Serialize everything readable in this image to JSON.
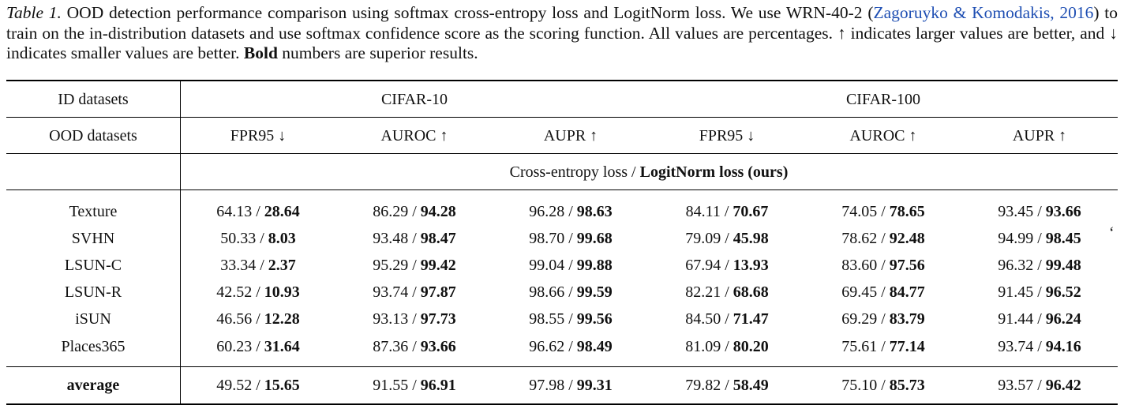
{
  "caption": {
    "label": "Table 1.",
    "part1": " OOD detection performance comparison using softmax cross-entropy loss and LogitNorm loss. We use WRN-40-2 (",
    "citation": "Zagoruyko & Komodakis, 2016",
    "part2": ") to train on the in-distribution datasets and use softmax confidence score as the scoring function. All values are percentages. ↑ indicates larger values are better, and ↓ indicates smaller values are better. ",
    "bold_word": "Bold",
    "part3": " numbers are superior results."
  },
  "header": {
    "id_label": "ID datasets",
    "ood_label": "OOD datasets",
    "groups": [
      "CIFAR-10",
      "CIFAR-100"
    ],
    "metrics": [
      "FPR95 ↓",
      "AUROC ↑",
      "AUPR ↑",
      "FPR95 ↓",
      "AUROC ↑",
      "AUPR ↑"
    ],
    "method_prefix": "Cross-entropy loss / ",
    "method_bold": "LogitNorm loss (ours)"
  },
  "rows": [
    {
      "name": "Texture",
      "cells": [
        [
          "64.13 / ",
          "28.64"
        ],
        [
          "86.29 / ",
          "94.28"
        ],
        [
          "96.28 / ",
          "98.63"
        ],
        [
          "84.11 / ",
          "70.67"
        ],
        [
          "74.05 / ",
          "78.65"
        ],
        [
          "93.45 / ",
          "93.66"
        ]
      ]
    },
    {
      "name": "SVHN",
      "cells": [
        [
          "50.33 / ",
          "8.03"
        ],
        [
          "93.48 / ",
          "98.47"
        ],
        [
          "98.70 / ",
          "99.68"
        ],
        [
          "79.09 / ",
          "45.98"
        ],
        [
          "78.62 / ",
          "92.48"
        ],
        [
          "94.99 / ",
          "98.45"
        ]
      ]
    },
    {
      "name": "LSUN-C",
      "cells": [
        [
          "33.34 / ",
          "2.37"
        ],
        [
          "95.29 / ",
          "99.42"
        ],
        [
          "99.04 / ",
          "99.88"
        ],
        [
          "67.94 / ",
          "13.93"
        ],
        [
          "83.60 / ",
          "97.56"
        ],
        [
          "96.32 / ",
          "99.48"
        ]
      ]
    },
    {
      "name": "LSUN-R",
      "cells": [
        [
          "42.52 / ",
          "10.93"
        ],
        [
          "93.74 / ",
          "97.87"
        ],
        [
          "98.66 / ",
          "99.59"
        ],
        [
          "82.21 / ",
          "68.68"
        ],
        [
          "69.45 / ",
          "84.77"
        ],
        [
          "91.45 / ",
          "96.52"
        ]
      ]
    },
    {
      "name": "iSUN",
      "cells": [
        [
          "46.56 / ",
          "12.28"
        ],
        [
          "93.13 / ",
          "97.73"
        ],
        [
          "98.55 / ",
          "99.56"
        ],
        [
          "84.50 / ",
          "71.47"
        ],
        [
          "69.29 / ",
          "83.79"
        ],
        [
          "91.44 / ",
          "96.24"
        ]
      ]
    },
    {
      "name": "Places365",
      "cells": [
        [
          "60.23 / ",
          "31.64"
        ],
        [
          "87.36 / ",
          "93.66"
        ],
        [
          "96.62 / ",
          "98.49"
        ],
        [
          "81.09 / ",
          "80.20"
        ],
        [
          "75.61 / ",
          "77.14"
        ],
        [
          "93.74 / ",
          "94.16"
        ]
      ]
    }
  ],
  "average": {
    "name": "average",
    "cells": [
      [
        "49.52 / ",
        "15.65"
      ],
      [
        "91.55 / ",
        "96.91"
      ],
      [
        "97.98 / ",
        "99.31"
      ],
      [
        "79.82 / ",
        "58.49"
      ],
      [
        "75.10 / ",
        "85.73"
      ],
      [
        "93.57 / ",
        "96.42"
      ]
    ]
  },
  "stray_mark": "‘"
}
